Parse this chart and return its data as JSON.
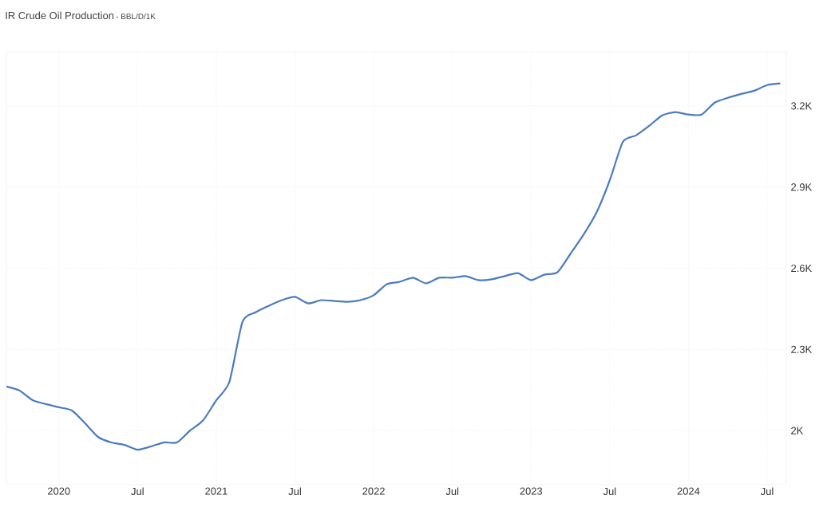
{
  "chart_data": {
    "type": "line",
    "title": "IR Crude Oil Production",
    "subtitle": "- BBL/D/1K",
    "x": [
      "2019-09",
      "2019-10",
      "2019-11",
      "2019-12",
      "2020-01",
      "2020-02",
      "2020-03",
      "2020-04",
      "2020-05",
      "2020-06",
      "2020-07",
      "2020-08",
      "2020-09",
      "2020-10",
      "2020-11",
      "2020-12",
      "2021-01",
      "2021-02",
      "2021-03",
      "2021-04",
      "2021-05",
      "2021-06",
      "2021-07",
      "2021-08",
      "2021-09",
      "2021-10",
      "2021-11",
      "2021-12",
      "2022-01",
      "2022-02",
      "2022-03",
      "2022-04",
      "2022-05",
      "2022-06",
      "2022-07",
      "2022-08",
      "2022-09",
      "2022-10",
      "2022-11",
      "2022-12",
      "2023-01",
      "2023-02",
      "2023-03",
      "2023-04",
      "2023-05",
      "2023-06",
      "2023-07",
      "2023-08",
      "2023-09",
      "2023-10",
      "2023-11",
      "2023-12",
      "2024-01",
      "2024-02",
      "2024-03",
      "2024-04",
      "2024-05",
      "2024-06",
      "2024-07",
      "2024-08"
    ],
    "series": [
      {
        "color": "#4a7bbf",
        "values": [
          2163,
          2148,
          2112,
          2098,
          2086,
          2074,
          2027,
          1976,
          1956,
          1947,
          1929,
          1941,
          1956,
          1956,
          2000,
          2038,
          2112,
          2180,
          2402,
          2437,
          2461,
          2482,
          2494,
          2470,
          2482,
          2479,
          2476,
          2482,
          2500,
          2541,
          2550,
          2565,
          2544,
          2565,
          2565,
          2571,
          2556,
          2559,
          2571,
          2582,
          2556,
          2576,
          2585,
          2653,
          2724,
          2807,
          2925,
          3067,
          3091,
          3126,
          3165,
          3177,
          3168,
          3168,
          3212,
          3230,
          3244,
          3256,
          3277,
          3283
        ]
      }
    ],
    "xlim": [
      "2019-09",
      "2024-08-15"
    ],
    "xticks": [
      {
        "value": "2020-01",
        "label": "2020"
      },
      {
        "value": "2020-07",
        "label": "Jul"
      },
      {
        "value": "2021-01",
        "label": "2021"
      },
      {
        "value": "2021-07",
        "label": "Jul"
      },
      {
        "value": "2022-01",
        "label": "2022"
      },
      {
        "value": "2022-07",
        "label": "Jul"
      },
      {
        "value": "2023-01",
        "label": "2023"
      },
      {
        "value": "2023-07",
        "label": "Jul"
      },
      {
        "value": "2024-01",
        "label": "2024"
      },
      {
        "value": "2024-07",
        "label": "Jul"
      }
    ],
    "ylim": [
      1800,
      3400
    ],
    "yticks": [
      {
        "value": 2000,
        "label": "2K"
      },
      {
        "value": 2300,
        "label": "2.3K"
      },
      {
        "value": 2600,
        "label": "2.6K"
      },
      {
        "value": 2900,
        "label": "2.9K"
      },
      {
        "value": 3200,
        "label": "3.2K"
      }
    ],
    "grid": true,
    "line_style": "solid",
    "marker": "none"
  }
}
